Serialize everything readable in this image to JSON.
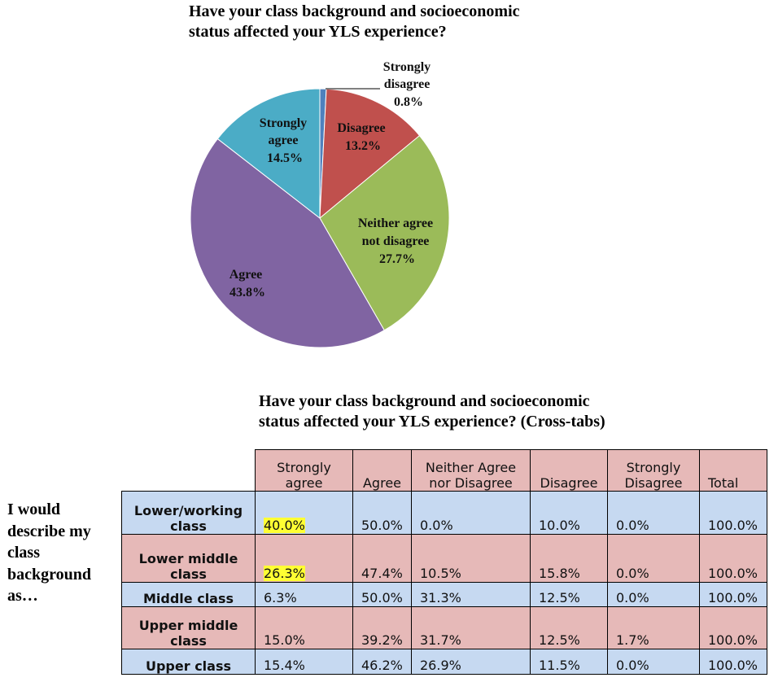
{
  "chart_data": [
    {
      "type": "pie",
      "title": "Have your class background and socioeconomic\nstatus affected your YLS experience?",
      "slices": [
        {
          "label": "Strongly disagree",
          "value": 0.8,
          "display": "0.8%",
          "color": "#4f81bd"
        },
        {
          "label": "Disagree",
          "value": 13.2,
          "display": "13.2%",
          "color": "#c0504d"
        },
        {
          "label": "Neither agree not disagree",
          "value": 27.7,
          "display": "27.7%",
          "color": "#9bbb59"
        },
        {
          "label": "Agree",
          "value": 43.8,
          "display": "43.8%",
          "color": "#8064a2"
        },
        {
          "label": "Strongly agree",
          "value": 14.5,
          "display": "14.5%",
          "color": "#4bacc6"
        }
      ]
    },
    {
      "type": "table",
      "title": "Have your class background and socioeconomic\nstatus affected your YLS experience? (Cross-tabs)",
      "row_axis_label": "I would describe my class background as…",
      "columns": [
        "Strongly agree",
        "Agree",
        "Neither Agree nor Disagree",
        "Disagree",
        "Strongly Disagree",
        "Total"
      ],
      "rows": [
        {
          "label": "Lower/working class",
          "values": [
            "40.0%",
            "50.0%",
            "0.0%",
            "10.0%",
            "0.0%",
            "100.0%"
          ],
          "highlight": [
            0
          ]
        },
        {
          "label": "Lower middle class",
          "values": [
            "26.3%",
            "47.4%",
            "10.5%",
            "15.8%",
            "0.0%",
            "100.0%"
          ],
          "highlight": [
            0
          ]
        },
        {
          "label": "Middle class",
          "values": [
            "6.3%",
            "50.0%",
            "31.3%",
            "12.5%",
            "0.0%",
            "100.0%"
          ],
          "highlight": []
        },
        {
          "label": "Upper middle class",
          "values": [
            "15.0%",
            "39.2%",
            "31.7%",
            "12.5%",
            "1.7%",
            "100.0%"
          ],
          "highlight": []
        },
        {
          "label": "Upper class",
          "values": [
            "15.4%",
            "46.2%",
            "26.9%",
            "11.5%",
            "0.0%",
            "100.0%"
          ],
          "highlight": []
        }
      ],
      "colors": {
        "header": "#e6b9b8",
        "row_alt_blue": "#c6d9f1",
        "row_alt_pink": "#e6b9b8",
        "highlight": "#ffff33"
      }
    }
  ],
  "pie_labels": {
    "strongly_disagree": [
      "Strongly",
      "disagree",
      "0.8%"
    ],
    "disagree": [
      "Disagree",
      "13.2%"
    ],
    "neither": [
      "Neither agree",
      "not disagree",
      "27.7%"
    ],
    "agree": [
      "Agree",
      "43.8%"
    ],
    "strongly_agree": [
      "Strongly",
      "agree",
      "14.5%"
    ]
  },
  "table_header": {
    "c0": "Strongly\nagree",
    "c1": "Agree",
    "c2": "Neither Agree\nnor Disagree",
    "c3": "Disagree",
    "c4": "Strongly\nDisagree",
    "c5": "Total"
  },
  "side_label": "I would describe my class background as…"
}
